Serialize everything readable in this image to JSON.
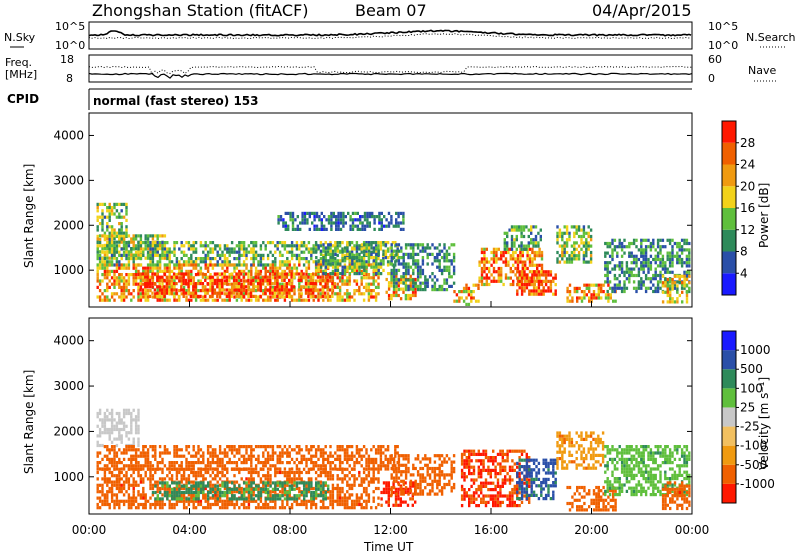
{
  "header": {
    "station": "Zhongshan Station (fitACF)",
    "beam": "Beam 07",
    "date": "04/Apr/2015",
    "cpid_label": "CPID",
    "mode_text": "normal (fast stereo) 153"
  },
  "panels": {
    "sky": {
      "left_label": "N.Sky",
      "right_label": "N.Search",
      "left_ticks": [
        "10^5",
        "10^0"
      ],
      "right_ticks": [
        "10^5",
        "10^0"
      ]
    },
    "freq": {
      "left_label": "Freq.",
      "left_unit": "[MHz]",
      "right_label": "Nave",
      "left_ticks": [
        "18",
        "8"
      ],
      "right_ticks": [
        "60",
        "0"
      ]
    }
  },
  "colors": {
    "power_scale": [
      "#1a1aff",
      "#2a4fa8",
      "#2e8a5a",
      "#5fbf3c",
      "#f2d21a",
      "#f09a10",
      "#f06000",
      "#ff1800"
    ],
    "velocity_scale": [
      "#ff1800",
      "#f06000",
      "#f09a10",
      "#f2c060",
      "#c8c8c8",
      "#5fbf3c",
      "#2e8a5a",
      "#2a4fa8",
      "#1a1aff"
    ]
  },
  "chart_data": [
    {
      "type": "heatmap",
      "name": "power",
      "ylabel": "Slant Range [km]",
      "yticks": [
        1000,
        2000,
        3000,
        4000
      ],
      "ylim": [
        180,
        4500
      ],
      "xlim": [
        "00:00",
        "24:00"
      ],
      "colorbar": {
        "label": "Power [dB]",
        "ticks": [
          "4",
          "8",
          "12",
          "16",
          "20",
          "24",
          "28"
        ],
        "range": [
          0,
          32
        ]
      },
      "regions": [
        {
          "t0": 0.3,
          "t1": 1.5,
          "r0": 1700,
          "r1": 2500,
          "value": 14
        },
        {
          "t0": 0.3,
          "t1": 3.0,
          "r0": 1300,
          "r1": 1800,
          "value": 16
        },
        {
          "t0": 0.3,
          "t1": 12.3,
          "r0": 1150,
          "r1": 1650,
          "value": 13
        },
        {
          "t0": 0.3,
          "t1": 11.5,
          "r0": 350,
          "r1": 1150,
          "value": 22
        },
        {
          "t0": 2.0,
          "t1": 9.8,
          "r0": 400,
          "r1": 950,
          "value": 28
        },
        {
          "t0": 9.0,
          "t1": 12.0,
          "r0": 900,
          "r1": 1600,
          "value": 12
        },
        {
          "t0": 11.8,
          "t1": 13.0,
          "r0": 350,
          "r1": 900,
          "value": 22
        },
        {
          "t0": 12.0,
          "t1": 14.5,
          "r0": 600,
          "r1": 1600,
          "value": 10
        },
        {
          "t0": 14.5,
          "t1": 15.5,
          "r0": 250,
          "r1": 700,
          "value": 22
        },
        {
          "t0": 15.5,
          "t1": 18.0,
          "r0": 700,
          "r1": 1500,
          "value": 24
        },
        {
          "t0": 17.0,
          "t1": 18.6,
          "r0": 500,
          "r1": 1000,
          "value": 28
        },
        {
          "t0": 16.5,
          "t1": 18.0,
          "r0": 1500,
          "r1": 2000,
          "value": 11
        },
        {
          "t0": 18.6,
          "t1": 20.0,
          "r0": 1200,
          "r1": 2000,
          "value": 14
        },
        {
          "t0": 19.0,
          "t1": 21.0,
          "r0": 300,
          "r1": 700,
          "value": 22
        },
        {
          "t0": 20.5,
          "t1": 23.9,
          "r0": 500,
          "r1": 1700,
          "value": 10
        },
        {
          "t0": 22.8,
          "t1": 23.9,
          "r0": 300,
          "r1": 900,
          "value": 18
        },
        {
          "t0": 7.5,
          "t1": 12.5,
          "r0": 1900,
          "r1": 2300,
          "value": 8
        }
      ]
    },
    {
      "type": "heatmap",
      "name": "velocity",
      "ylabel": "Slant Range [km]",
      "xlabel": "Time UT",
      "xticks": [
        "00:00",
        "04:00",
        "08:00",
        "12:00",
        "16:00",
        "20:00",
        "00:00"
      ],
      "yticks": [
        1000,
        2000,
        3000,
        4000
      ],
      "ylim": [
        180,
        4500
      ],
      "xlim": [
        "00:00",
        "24:00"
      ],
      "colorbar": {
        "label": "Velocity [m s⁻¹]",
        "ticks": [
          "1000",
          "500",
          "100",
          "25",
          "-25",
          "-100",
          "-500",
          "-1000"
        ]
      },
      "regions": [
        {
          "t0": 0.3,
          "t1": 2.0,
          "r0": 1700,
          "r1": 2500,
          "value": 0
        },
        {
          "t0": 0.3,
          "t1": 12.3,
          "r0": 1200,
          "r1": 1700,
          "value": -150
        },
        {
          "t0": 0.3,
          "t1": 11.5,
          "r0": 350,
          "r1": 1200,
          "value": -400
        },
        {
          "t0": 2.5,
          "t1": 9.5,
          "r0": 500,
          "r1": 900,
          "value": 60
        },
        {
          "t0": 11.6,
          "t1": 13.0,
          "r0": 350,
          "r1": 900,
          "value": -600
        },
        {
          "t0": 12.0,
          "t1": 14.5,
          "r0": 600,
          "r1": 1500,
          "value": -200
        },
        {
          "t0": 14.8,
          "t1": 17.5,
          "r0": 400,
          "r1": 1600,
          "value": -500
        },
        {
          "t0": 17.0,
          "t1": 18.6,
          "r0": 500,
          "r1": 1400,
          "value": 120
        },
        {
          "t0": 18.6,
          "t1": 20.5,
          "r0": 1200,
          "r1": 2000,
          "value": -80
        },
        {
          "t0": 19.0,
          "t1": 21.0,
          "r0": 300,
          "r1": 800,
          "value": -300
        },
        {
          "t0": 20.5,
          "t1": 23.9,
          "r0": 600,
          "r1": 1700,
          "value": 40
        },
        {
          "t0": 22.8,
          "t1": 23.9,
          "r0": 300,
          "r1": 900,
          "value": -400
        }
      ]
    }
  ]
}
